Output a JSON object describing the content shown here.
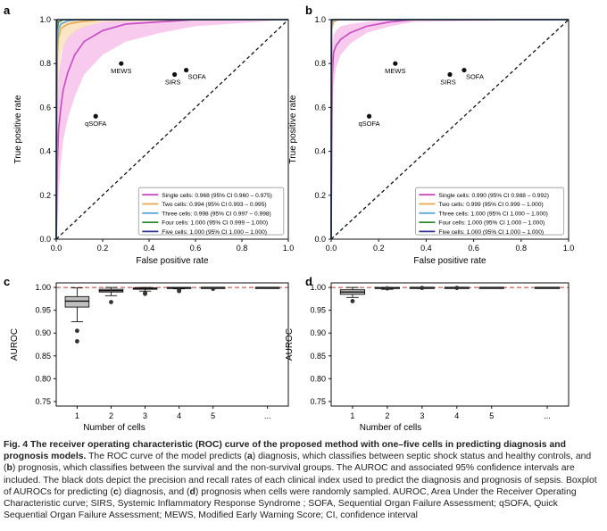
{
  "colors": {
    "single": "#c64ac2",
    "two": "#e8a84c",
    "three": "#5aa7d8",
    "four": "#2e8a2e",
    "five": "#2f2f90",
    "band_single": "#f4b8e8",
    "band_two": "#f8dcb0",
    "ref_line": "#c0392b",
    "box_face": "#bfbfbf"
  },
  "chart_data": [
    {
      "panel": "a",
      "type": "line",
      "xlabel": "False positive rate",
      "ylabel": "True positive rate",
      "xlim": [
        0,
        1
      ],
      "ylim": [
        0,
        1
      ],
      "xticks": [
        "0.0",
        "0.2",
        "0.4",
        "0.6",
        "0.8",
        "1.0"
      ],
      "yticks": [
        "0.0",
        "0.2",
        "0.4",
        "0.6",
        "0.8",
        "1.0"
      ],
      "legend_position": "bottom-right",
      "series": [
        {
          "key": "single",
          "name": "Single cells: 0.968 (95% CI 0.960 – 0.975)",
          "x": [
            0,
            0.005,
            0.01,
            0.02,
            0.03,
            0.05,
            0.08,
            0.12,
            0.2,
            0.3,
            0.45,
            0.6,
            1.0
          ],
          "y": [
            0,
            0.35,
            0.5,
            0.6,
            0.68,
            0.76,
            0.84,
            0.9,
            0.95,
            0.98,
            0.99,
            1.0,
            1.0
          ],
          "band_low": [
            0,
            0.05,
            0.2,
            0.35,
            0.45,
            0.55,
            0.65,
            0.75,
            0.84,
            0.9,
            0.94,
            0.97,
            1.0
          ],
          "band_high": [
            0,
            0.6,
            0.75,
            0.82,
            0.88,
            0.92,
            0.95,
            0.97,
            0.99,
            1.0,
            1.0,
            1.0,
            1.0
          ]
        },
        {
          "key": "two",
          "name": "Two cells: 0.994 (95% CI 0.993 – 0.995)",
          "x": [
            0,
            0.005,
            0.01,
            0.02,
            0.05,
            0.1,
            0.2,
            1.0
          ],
          "y": [
            0,
            0.85,
            0.92,
            0.96,
            0.98,
            0.99,
            1.0,
            1.0
          ],
          "band_low": [
            0,
            0.6,
            0.75,
            0.85,
            0.92,
            0.96,
            0.99,
            1.0
          ],
          "band_high": [
            0,
            0.95,
            0.98,
            0.99,
            1.0,
            1.0,
            1.0,
            1.0
          ]
        },
        {
          "key": "three",
          "name": "Three cells: 0.998 (95% CI 0.997 – 0.998)",
          "x": [
            0,
            0.003,
            0.01,
            0.02,
            0.05,
            0.1,
            1.0
          ],
          "y": [
            0,
            0.9,
            0.96,
            0.98,
            0.995,
            1.0,
            1.0
          ]
        },
        {
          "key": "four",
          "name": "Four cells: 1.000 (95% CI 0.999 – 1.000)",
          "x": [
            0,
            0.002,
            0.01,
            0.03,
            1.0
          ],
          "y": [
            0,
            0.95,
            0.99,
            1.0,
            1.0
          ]
        },
        {
          "key": "five",
          "name": "Five cells: 1.000 (95% CI 1.000 – 1.000)",
          "x": [
            0,
            0.001,
            0.005,
            1.0
          ],
          "y": [
            0,
            0.98,
            1.0,
            1.0
          ]
        }
      ],
      "points": [
        {
          "label": "MEWS",
          "x": 0.28,
          "y": 0.8
        },
        {
          "label": "SOFA",
          "x": 0.56,
          "y": 0.77
        },
        {
          "label": "SIRS",
          "x": 0.51,
          "y": 0.75
        },
        {
          "label": "qSOFA",
          "x": 0.17,
          "y": 0.56
        }
      ]
    },
    {
      "panel": "b",
      "type": "line",
      "xlabel": "False positive rate",
      "ylabel": "True positive rate",
      "xlim": [
        0,
        1
      ],
      "ylim": [
        0,
        1
      ],
      "xticks": [
        "0.0",
        "0.2",
        "0.4",
        "0.6",
        "0.8",
        "1.0"
      ],
      "yticks": [
        "0.0",
        "0.2",
        "0.4",
        "0.6",
        "0.8",
        "1.0"
      ],
      "legend_position": "bottom-right",
      "series": [
        {
          "key": "single",
          "name": "Single cells: 0.990 (95% CI 0.988 – 0.992)",
          "x": [
            0,
            0.005,
            0.01,
            0.02,
            0.04,
            0.08,
            0.15,
            0.25,
            0.35,
            1.0
          ],
          "y": [
            0,
            0.75,
            0.85,
            0.88,
            0.91,
            0.94,
            0.97,
            0.99,
            1.0,
            1.0
          ],
          "band_low": [
            0,
            0.5,
            0.7,
            0.78,
            0.84,
            0.89,
            0.94,
            0.97,
            0.99,
            1.0
          ],
          "band_high": [
            0,
            0.88,
            0.93,
            0.95,
            0.97,
            0.98,
            0.99,
            1.0,
            1.0,
            1.0
          ]
        },
        {
          "key": "two",
          "name": "Two cells: 0.999 (95% CI 0.999 – 1.000)",
          "x": [
            0,
            0.003,
            0.01,
            0.03,
            1.0
          ],
          "y": [
            0,
            0.96,
            0.99,
            1.0,
            1.0
          ]
        },
        {
          "key": "three",
          "name": "Three cells: 1.000 (95% CI 1.000 – 1.000)",
          "x": [
            0,
            0.002,
            0.008,
            1.0
          ],
          "y": [
            0,
            0.98,
            1.0,
            1.0
          ]
        },
        {
          "key": "four",
          "name": "Four cells: 1.000 (95% CI 1.000 – 1.000)",
          "x": [
            0,
            0.001,
            0.005,
            1.0
          ],
          "y": [
            0,
            0.99,
            1.0,
            1.0
          ]
        },
        {
          "key": "five",
          "name": "Five cells: 1.000 (95% CI 1.000 – 1.000)",
          "x": [
            0,
            0.001,
            0.003,
            1.0
          ],
          "y": [
            0,
            0.995,
            1.0,
            1.0
          ]
        }
      ],
      "points": [
        {
          "label": "MEWS",
          "x": 0.27,
          "y": 0.8
        },
        {
          "label": "SOFA",
          "x": 0.56,
          "y": 0.77
        },
        {
          "label": "SIRS",
          "x": 0.5,
          "y": 0.75
        },
        {
          "label": "qSOFA",
          "x": 0.16,
          "y": 0.56
        }
      ]
    },
    {
      "panel": "c",
      "type": "box",
      "xlabel": "Number of cells",
      "ylabel": "AUROC",
      "ylim": [
        0.74,
        1.01
      ],
      "yticks": [
        "0.75",
        "0.80",
        "0.85",
        "0.90",
        "0.95",
        "1.00"
      ],
      "categories": [
        "1",
        "2",
        "3",
        "4",
        "5",
        "..."
      ],
      "boxes": [
        {
          "q1": 0.957,
          "median": 0.97,
          "q3": 0.98,
          "whisker_low": 0.925,
          "whisker_high": 0.999,
          "outliers": [
            0.905,
            0.882
          ]
        },
        {
          "q1": 0.99,
          "median": 0.993,
          "q3": 0.996,
          "whisker_low": 0.982,
          "whisker_high": 1.0,
          "outliers": [
            0.968
          ]
        },
        {
          "q1": 0.996,
          "median": 0.998,
          "q3": 0.999,
          "whisker_low": 0.992,
          "whisker_high": 1.0,
          "outliers": [
            0.988,
            0.986
          ]
        },
        {
          "q1": 0.999,
          "median": 0.9995,
          "q3": 1.0,
          "whisker_low": 0.997,
          "whisker_high": 1.0,
          "outliers": [
            0.994,
            0.992
          ]
        },
        {
          "q1": 0.9995,
          "median": 1.0,
          "q3": 1.0,
          "whisker_low": 0.999,
          "whisker_high": 1.0,
          "outliers": [
            0.997
          ]
        },
        {
          "q1": 1.0,
          "median": 1.0,
          "q3": 1.0,
          "whisker_low": 1.0,
          "whisker_high": 1.0,
          "outliers": []
        }
      ],
      "reference_line": 1.0
    },
    {
      "panel": "d",
      "type": "box",
      "xlabel": "Number of cells",
      "ylabel": "AUROC",
      "ylim": [
        0.74,
        1.01
      ],
      "yticks": [
        "0.75",
        "0.80",
        "0.85",
        "0.90",
        "0.95",
        "1.00"
      ],
      "categories": [
        "1",
        "2",
        "3",
        "4",
        "5",
        "..."
      ],
      "boxes": [
        {
          "q1": 0.985,
          "median": 0.99,
          "q3": 0.995,
          "whisker_low": 0.978,
          "whisker_high": 1.0,
          "outliers": [
            0.97
          ]
        },
        {
          "q1": 0.998,
          "median": 0.999,
          "q3": 1.0,
          "whisker_low": 0.996,
          "whisker_high": 1.0,
          "outliers": [
            0.998
          ]
        },
        {
          "q1": 0.999,
          "median": 1.0,
          "q3": 1.0,
          "whisker_low": 0.998,
          "whisker_high": 1.0,
          "outliers": [
            0.999
          ]
        },
        {
          "q1": 1.0,
          "median": 1.0,
          "q3": 1.0,
          "whisker_low": 0.999,
          "whisker_high": 1.0,
          "outliers": [
            0.999
          ]
        },
        {
          "q1": 1.0,
          "median": 1.0,
          "q3": 1.0,
          "whisker_low": 1.0,
          "whisker_high": 1.0,
          "outliers": []
        },
        {
          "q1": 1.0,
          "median": 1.0,
          "q3": 1.0,
          "whisker_low": 1.0,
          "whisker_high": 1.0,
          "outliers": []
        }
      ],
      "reference_line": 1.0
    }
  ],
  "caption": {
    "fig_label": "Fig. 4",
    "title": "The receiver operating characteristic (ROC) curve of the proposed method with one–five cells in predicting diagnosis and prognosis models.",
    "s1": "The ROC curve of the model predicts (",
    "s1b": "a",
    "s2": ") diagnosis, which classifies between septic shock status and healthy controls, and (",
    "s2b": "b",
    "s3": ") prognosis, which classifies between the survival and the non-survival groups. The AUROC and associated 95% confidence intervals are included. The black dots depict the precision and recall rates of each clinical index used to predict the diagnosis and prognosis of sepsis. Boxplot of AUROCs for predicting (",
    "s3b": "c",
    "s4": ") diagnosis, and (",
    "s4b": "d",
    "s5": ") prognosis when cells were randomly sampled. AUROC, Area Under the Receiver Operating Characteristic curve; SIRS, Systemic Inflammatory Response Syndrome ; SOFA, Sequential Organ Failure Assessment; qSOFA, Quick Sequential Organ Failure Assessment; MEWS, Modified Early Warning Score; CI, confidence interval"
  }
}
